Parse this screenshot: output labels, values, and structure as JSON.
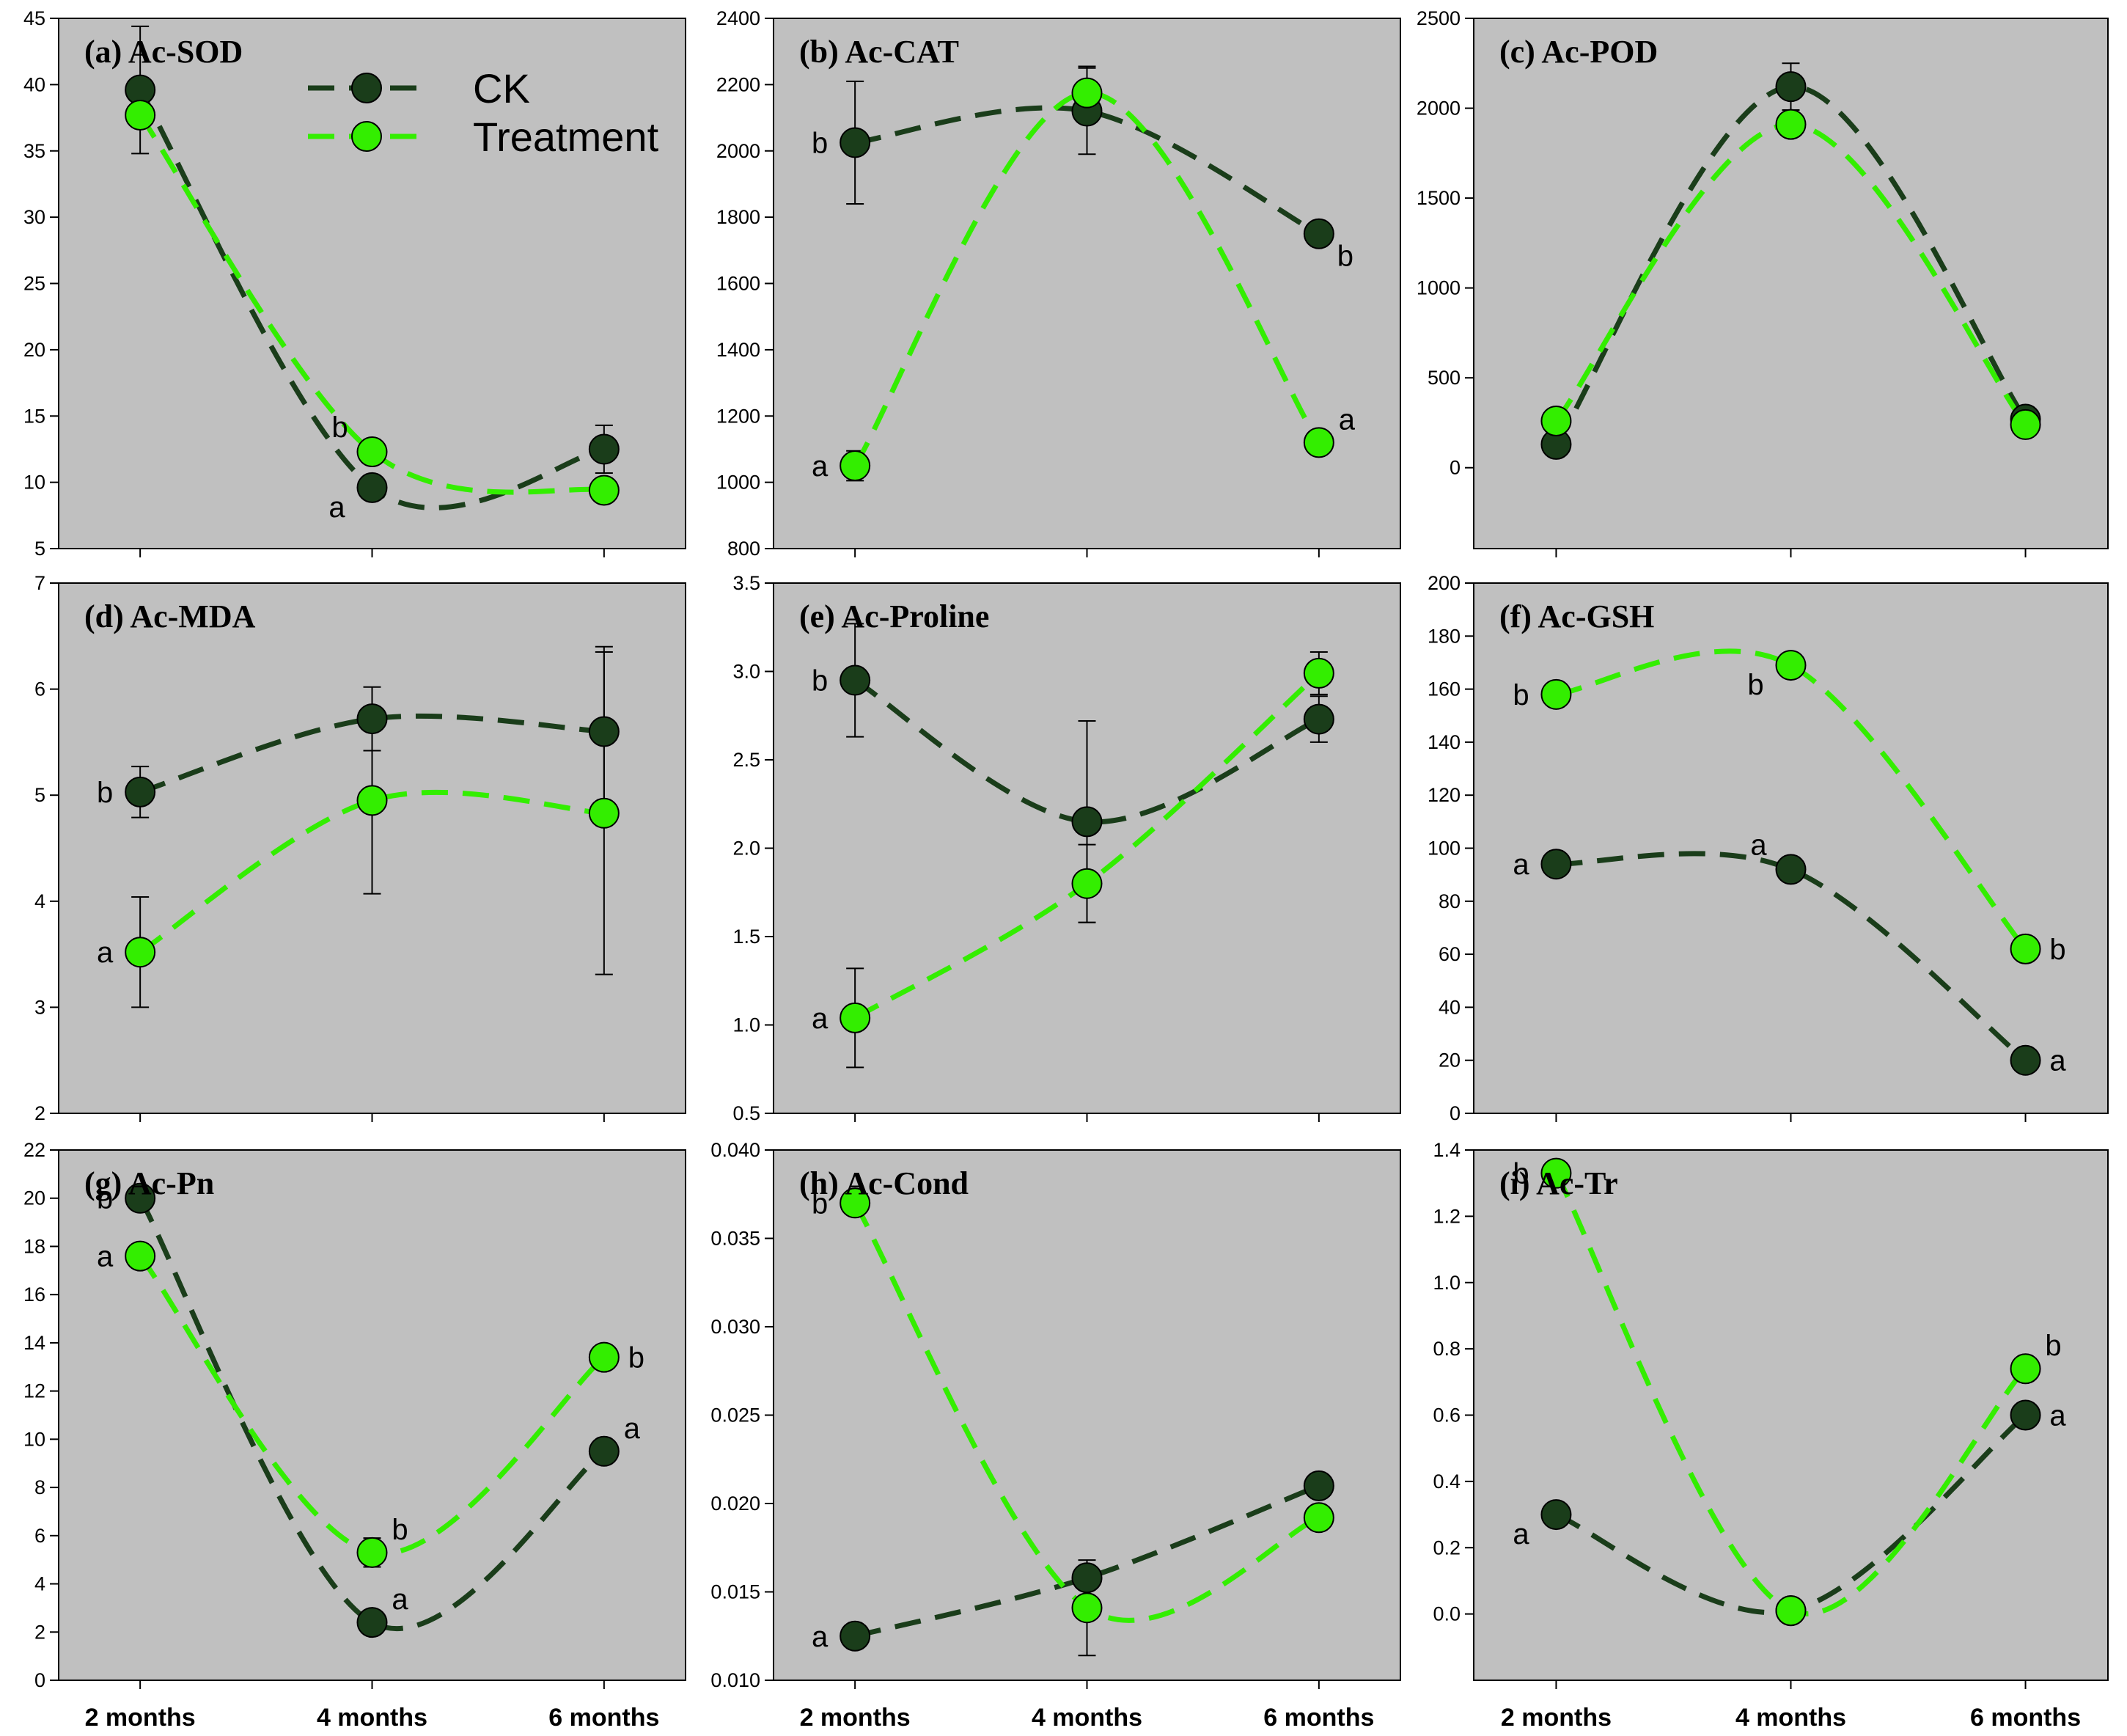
{
  "chart_data": {
    "type": "line",
    "categories": [
      "2 months",
      "4 months",
      "6 months"
    ],
    "legend": {
      "placement": "top-right of panel (a)",
      "entries": [
        {
          "name": "CK",
          "color": "#1a3d1a"
        },
        {
          "name": "Treatment",
          "color": "#33ee00"
        }
      ]
    },
    "style": {
      "plot_background": "#c0c0c0",
      "ck_color": "#1a3d1a",
      "treatment_color": "#33ee00",
      "marker_outline": "#000000"
    },
    "panels": [
      {
        "title": "(a) Ac-SOD",
        "ylim": [
          5,
          45
        ],
        "yticks": [
          "5",
          "10",
          "15",
          "20",
          "25",
          "30",
          "35",
          "40",
          "45"
        ],
        "series": [
          {
            "name": "CK",
            "values": [
              39.6,
              9.6,
              12.5
            ],
            "errors": [
              4.8,
              0.6,
              1.8
            ]
          },
          {
            "name": "Treatment",
            "values": [
              37.7,
              12.3,
              9.4
            ],
            "errors": [
              0,
              0,
              0
            ]
          }
        ],
        "letters": [
          {
            "series": "Treatment",
            "index": 1,
            "text": "b",
            "side": "above-left"
          },
          {
            "series": "CK",
            "index": 1,
            "text": "a",
            "side": "below-left"
          }
        ]
      },
      {
        "title": "(b) Ac-CAT",
        "ylim": [
          800,
          2400
        ],
        "yticks": [
          "800",
          "1000",
          "1200",
          "1400",
          "1600",
          "1800",
          "2000",
          "2200",
          "2400"
        ],
        "series": [
          {
            "name": "CK",
            "values": [
              2025,
              2120,
              1750
            ],
            "errors": [
              185,
              130,
              0
            ]
          },
          {
            "name": "Treatment",
            "values": [
              1050,
              2175,
              1120
            ],
            "errors": [
              45,
              80,
              0
            ]
          }
        ],
        "letters": [
          {
            "series": "CK",
            "index": 0,
            "text": "b",
            "side": "left"
          },
          {
            "series": "Treatment",
            "index": 0,
            "text": "a",
            "side": "left"
          },
          {
            "series": "CK",
            "index": 2,
            "text": "b",
            "side": "below-right"
          },
          {
            "series": "Treatment",
            "index": 2,
            "text": "a",
            "side": "above-right"
          }
        ]
      },
      {
        "title": "(c) Ac-POD",
        "ylim": [
          -450,
          2500
        ],
        "yticks": [
          "0",
          "500",
          "1000",
          "1500",
          "2000",
          "2500"
        ],
        "series": [
          {
            "name": "CK",
            "values": [
              130,
              2120,
              270
            ],
            "errors": [
              0,
              130,
              0
            ]
          },
          {
            "name": "Treatment",
            "values": [
              260,
              1910,
              240
            ],
            "errors": [
              0,
              0,
              0
            ]
          }
        ],
        "letters": []
      },
      {
        "title": "(d) Ac-MDA",
        "ylim": [
          2,
          7
        ],
        "yticks": [
          "2",
          "3",
          "4",
          "5",
          "6",
          "7"
        ],
        "series": [
          {
            "name": "CK",
            "values": [
              5.03,
              5.72,
              5.6
            ],
            "errors": [
              0.24,
              0.3,
              0.8
            ]
          },
          {
            "name": "Treatment",
            "values": [
              3.52,
              4.95,
              4.83
            ],
            "errors": [
              0.52,
              0.88,
              1.52
            ]
          }
        ],
        "letters": [
          {
            "series": "CK",
            "index": 0,
            "text": "b",
            "side": "left"
          },
          {
            "series": "Treatment",
            "index": 0,
            "text": "a",
            "side": "left"
          }
        ]
      },
      {
        "title": "(e) Ac-Proline",
        "ylim": [
          0.5,
          3.5
        ],
        "yticks": [
          "0.5",
          "1.0",
          "1.5",
          "2.0",
          "2.5",
          "3.0",
          "3.5"
        ],
        "series": [
          {
            "name": "CK",
            "values": [
              2.95,
              2.15,
              2.73
            ],
            "errors": [
              0.32,
              0.57,
              0.13
            ]
          },
          {
            "name": "Treatment",
            "values": [
              1.04,
              1.8,
              2.99
            ],
            "errors": [
              0.28,
              0.22,
              0.12
            ]
          }
        ],
        "letters": [
          {
            "series": "CK",
            "index": 0,
            "text": "b",
            "side": "left"
          },
          {
            "series": "Treatment",
            "index": 0,
            "text": "a",
            "side": "left"
          }
        ]
      },
      {
        "title": "(f) Ac-GSH",
        "ylim": [
          0,
          200
        ],
        "yticks": [
          "0",
          "20",
          "40",
          "60",
          "80",
          "100",
          "120",
          "140",
          "160",
          "180",
          "200"
        ],
        "series": [
          {
            "name": "CK",
            "values": [
              94,
              92,
              20
            ],
            "errors": [
              0,
              0,
              0
            ]
          },
          {
            "name": "Treatment",
            "values": [
              158,
              169,
              62
            ],
            "errors": [
              0,
              0,
              0
            ]
          }
        ],
        "letters": [
          {
            "series": "Treatment",
            "index": 0,
            "text": "b",
            "side": "left"
          },
          {
            "series": "Treatment",
            "index": 1,
            "text": "b",
            "side": "below-left"
          },
          {
            "series": "Treatment",
            "index": 2,
            "text": "b",
            "side": "right"
          },
          {
            "series": "CK",
            "index": 0,
            "text": "a",
            "side": "left"
          },
          {
            "series": "CK",
            "index": 1,
            "text": "a",
            "side": "above-left"
          },
          {
            "series": "CK",
            "index": 2,
            "text": "a",
            "side": "right"
          }
        ]
      },
      {
        "title": "(g) Ac-Pn",
        "ylim": [
          0,
          22
        ],
        "yticks": [
          "0",
          "2",
          "4",
          "6",
          "8",
          "10",
          "12",
          "14",
          "16",
          "18",
          "20",
          "22"
        ],
        "series": [
          {
            "name": "CK",
            "values": [
              20.0,
              2.4,
              9.5
            ],
            "errors": [
              0,
              0,
              0
            ]
          },
          {
            "name": "Treatment",
            "values": [
              17.6,
              5.3,
              13.4
            ],
            "errors": [
              0,
              0.6,
              0
            ]
          }
        ],
        "letters": [
          {
            "series": "CK",
            "index": 0,
            "text": "b",
            "side": "left"
          },
          {
            "series": "Treatment",
            "index": 0,
            "text": "a",
            "side": "left"
          },
          {
            "series": "Treatment",
            "index": 1,
            "text": "b",
            "side": "above-right"
          },
          {
            "series": "CK",
            "index": 1,
            "text": "a",
            "side": "above-right"
          },
          {
            "series": "Treatment",
            "index": 2,
            "text": "b",
            "side": "right"
          },
          {
            "series": "CK",
            "index": 2,
            "text": "a",
            "side": "above-right"
          }
        ]
      },
      {
        "title": "(h) Ac-Cond",
        "ylim": [
          0.01,
          0.04
        ],
        "yticks": [
          "0.010",
          "0.015",
          "0.020",
          "0.025",
          "0.030",
          "0.035",
          "0.040"
        ],
        "series": [
          {
            "name": "CK",
            "values": [
              0.0125,
              0.0158,
              0.021
            ],
            "errors": [
              0,
              0,
              0
            ]
          },
          {
            "name": "Treatment",
            "values": [
              0.037,
              0.0141,
              0.0192
            ],
            "errors": [
              0,
              0.0027,
              0
            ]
          }
        ],
        "letters": [
          {
            "series": "Treatment",
            "index": 0,
            "text": "b",
            "side": "left"
          },
          {
            "series": "CK",
            "index": 0,
            "text": "a",
            "side": "left"
          }
        ]
      },
      {
        "title": "(i) Ac-Tr",
        "ylim": [
          -0.2,
          1.4
        ],
        "yticks": [
          "0.0",
          "0.2",
          "0.4",
          "0.6",
          "0.8",
          "1.0",
          "1.2",
          "1.4"
        ],
        "series": [
          {
            "name": "CK",
            "values": [
              0.3,
              0.01,
              0.6
            ],
            "errors": [
              0,
              0,
              0
            ]
          },
          {
            "name": "Treatment",
            "values": [
              1.33,
              0.01,
              0.74
            ],
            "errors": [
              0,
              0,
              0
            ]
          }
        ],
        "letters": [
          {
            "series": "Treatment",
            "index": 0,
            "text": "b",
            "side": "left"
          },
          {
            "series": "CK",
            "index": 0,
            "text": "a",
            "side": "below-left"
          },
          {
            "series": "Treatment",
            "index": 2,
            "text": "b",
            "side": "above-right"
          },
          {
            "series": "CK",
            "index": 2,
            "text": "a",
            "side": "right"
          }
        ]
      }
    ]
  }
}
